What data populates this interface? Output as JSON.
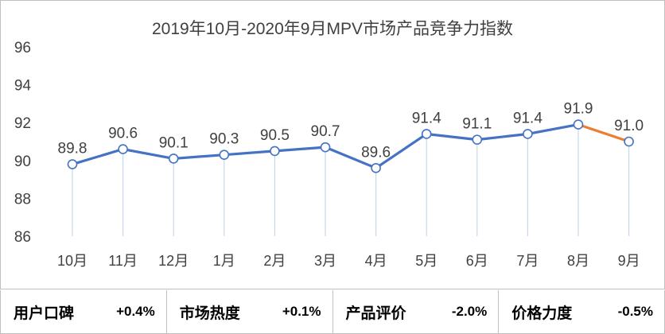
{
  "chart_data": {
    "type": "line",
    "title": "2019年10月-2020年9月MPV市场产品竞争力指数",
    "categories": [
      "10月",
      "11月",
      "12月",
      "1月",
      "2月",
      "3月",
      "4月",
      "5月",
      "6月",
      "7月",
      "8月",
      "9月"
    ],
    "values": [
      89.8,
      90.6,
      90.1,
      90.3,
      90.5,
      90.7,
      89.6,
      91.4,
      91.1,
      91.4,
      91.9,
      91.0
    ],
    "value_labels": [
      "89.8",
      "90.6",
      "90.1",
      "90.3",
      "90.5",
      "90.7",
      "89.6",
      "91.4",
      "91.1",
      "91.4",
      "91.9",
      "91.0"
    ],
    "ylim": [
      86,
      96
    ],
    "yticks": [
      86,
      88,
      90,
      92,
      94,
      96
    ],
    "xlabel": "",
    "ylabel": "",
    "grid": false,
    "colors": {
      "line": "#4472c4",
      "highlight_segment": "#ed7d31",
      "drop_line": "#c9d8ee"
    }
  },
  "metrics": [
    {
      "name": "用户口碑",
      "value": "+0.4%"
    },
    {
      "name": "市场热度",
      "value": "+0.1%"
    },
    {
      "name": "产品评价",
      "value": "-2.0%"
    },
    {
      "name": "价格力度",
      "value": "-0.5%"
    }
  ]
}
